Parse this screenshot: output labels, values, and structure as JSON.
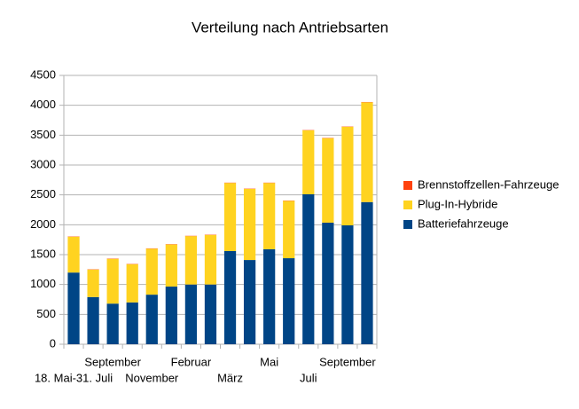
{
  "chart_data": {
    "type": "stacked-bar",
    "title": "Verteilung nach Antriebsarten",
    "categories": [
      "18. Mai-31. Juli",
      null,
      "September",
      null,
      "November",
      null,
      "Februar",
      null,
      "März",
      null,
      "Mai",
      null,
      "Juli",
      null,
      "September",
      null
    ],
    "series": [
      {
        "name": "Batteriefahrzeuge",
        "color": "#004586",
        "values": [
          1200,
          790,
          680,
          700,
          830,
          965,
          1000,
          1000,
          1560,
          1410,
          1590,
          1440,
          2510,
          2035,
          1990,
          2380
        ]
      },
      {
        "name": "Plug-In-Hybride",
        "color": "#ffd320",
        "values": [
          600,
          460,
          750,
          640,
          770,
          705,
          810,
          830,
          1140,
          1190,
          1110,
          960,
          1070,
          1415,
          1650,
          1670
        ]
      },
      {
        "name": "Brennstoffzellen-Fahrzeuge",
        "color": "#ff420e",
        "values": [
          5,
          5,
          5,
          5,
          5,
          5,
          5,
          5,
          5,
          5,
          5,
          5,
          5,
          5,
          5,
          5
        ]
      }
    ],
    "ylim": [
      0,
      4500
    ],
    "yticks": [
      0,
      500,
      1000,
      1500,
      2000,
      2500,
      3000,
      3500,
      4000,
      4500
    ],
    "grid": true
  }
}
